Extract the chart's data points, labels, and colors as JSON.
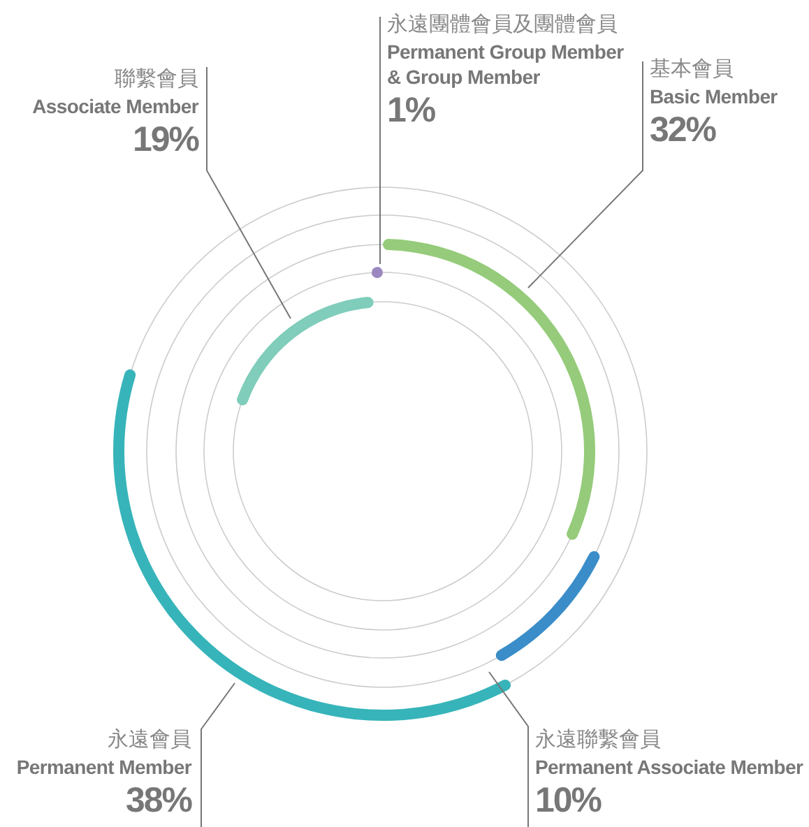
{
  "chart_data": {
    "type": "other",
    "categories": [
      "基本會員\nBasic Member",
      "永遠聯繫會員\nPermanent Associate Member",
      "永遠會員\nPermanent Member",
      "聯繫會員\nAssociate Member",
      "永遠團體會員及團體會員\nPermanent Group Member & Group Member"
    ],
    "values": [
      32,
      10,
      38,
      19,
      1
    ],
    "value_labels": [
      "32%",
      "10%",
      "38%",
      "19%",
      "1%"
    ],
    "colors": [
      "#95cb7a",
      "#3a8dc8",
      "#36b4b9",
      "#7fcdba",
      "#9c88c0"
    ]
  }
}
